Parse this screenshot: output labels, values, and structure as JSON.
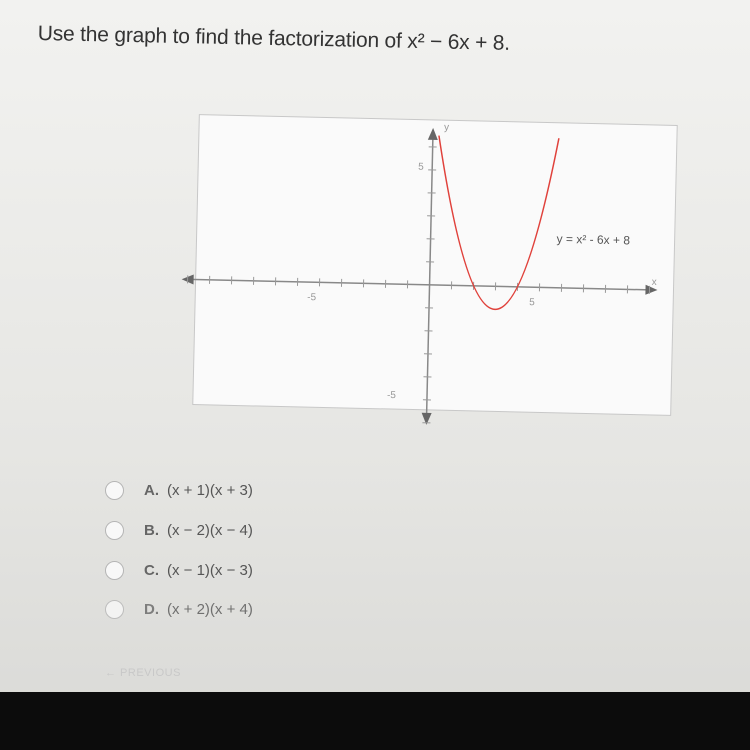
{
  "question": "Use the graph to find the factorization of x² − 6x + 8.",
  "graph": {
    "x_axis_label": "x",
    "y_axis_label": "y",
    "x_tick_labels": [
      "-5",
      "5"
    ],
    "y_tick_labels": [
      "5",
      "-5"
    ],
    "curve_label": "y = x² - 6x + 8"
  },
  "options": [
    {
      "letter": "A.",
      "text": "(x + 1)(x + 3)"
    },
    {
      "letter": "B.",
      "text": "(x − 2)(x − 4)"
    },
    {
      "letter": "C.",
      "text": "(x − 1)(x − 3)"
    },
    {
      "letter": "D.",
      "text": "(x + 2)(x + 4)"
    }
  ],
  "previous_button": "← PREVIOUS"
}
